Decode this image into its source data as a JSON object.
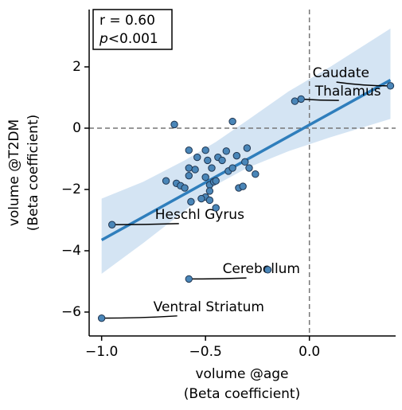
{
  "chart_data": {
    "type": "scatter",
    "x_label": [
      "volume @age",
      "(Beta coefficient)"
    ],
    "y_label": [
      "volume @T2DM",
      "(Beta coefficient)"
    ],
    "stats": {
      "r": "r = 0.60",
      "p_symbol": "p",
      "p_value": "<0.001"
    },
    "xlim": [
      -1.06,
      0.415
    ],
    "ylim": [
      -6.78,
      3.87
    ],
    "xticks": [
      {
        "value": -1.0,
        "label": "−1.0"
      },
      {
        "value": -0.5,
        "label": "−0.5"
      },
      {
        "value": 0,
        "label": "0.0"
      }
    ],
    "yticks": [
      2,
      0,
      {
        "value": -2,
        "label": "−2"
      },
      {
        "value": -4,
        "label": "−4"
      },
      {
        "value": -6,
        "label": "−6"
      }
    ],
    "reference_lines": {
      "x": 0,
      "y": 0
    },
    "color": "#4a86b8",
    "x": [
      -1.0,
      -0.95,
      -0.65,
      -0.58,
      -0.2,
      -0.07,
      -0.04,
      0.39,
      -0.37,
      -0.69,
      -0.64,
      -0.62,
      -0.6,
      -0.58,
      -0.58,
      -0.58,
      -0.55,
      -0.54,
      -0.5,
      -0.49,
      -0.47,
      -0.5,
      -0.48,
      -0.46,
      -0.48,
      -0.5,
      -0.48,
      -0.45,
      -0.44,
      -0.42,
      -0.4,
      -0.39,
      -0.37,
      -0.35,
      -0.34,
      -0.32,
      -0.31,
      -0.3,
      -0.29,
      -0.26,
      -0.57,
      -0.52,
      -0.45
    ],
    "y": [
      -6.2,
      -3.15,
      0.12,
      -4.92,
      -4.62,
      0.88,
      0.95,
      1.38,
      0.22,
      -1.72,
      -1.8,
      -1.88,
      -1.95,
      -0.72,
      -1.3,
      -1.55,
      -1.35,
      -0.95,
      -0.72,
      -1.05,
      -1.3,
      -1.6,
      -1.85,
      -1.75,
      -2.05,
      -2.25,
      -2.35,
      -2.6,
      -0.95,
      -1.05,
      -0.75,
      -1.4,
      -1.3,
      -0.9,
      -1.95,
      -1.9,
      -1.1,
      -0.65,
      -1.3,
      -1.5,
      -2.4,
      -2.3,
      -1.72
    ],
    "fit": {
      "color": "#2f7ebc",
      "x": [
        -1.0,
        0.39
      ],
      "y": [
        -3.65,
        1.57
      ]
    },
    "band": {
      "color": "#c6dbef",
      "x": [
        -1.0,
        -0.8,
        -0.6,
        -0.45,
        -0.3,
        -0.1,
        0.1,
        0.39
      ],
      "upper": [
        -2.3,
        -1.75,
        -1.05,
        -0.45,
        0.25,
        1.2,
        2.0,
        3.25
      ],
      "lower": [
        -4.75,
        -3.75,
        -2.7,
        -1.85,
        -1.3,
        -0.75,
        -0.3,
        0.3
      ]
    },
    "annotations": [
      {
        "text": "Caudate",
        "xy": [
          0.39,
          1.38
        ],
        "xytext": [
          0.015,
          1.79
        ]
      },
      {
        "text": "Thalamus",
        "xy": [
          -0.04,
          0.95
        ],
        "xytext": [
          0.027,
          1.19
        ]
      },
      {
        "text": "Heschl Gyrus",
        "xy": [
          -0.95,
          -3.15
        ],
        "xytext": [
          -0.743,
          -2.83
        ]
      },
      {
        "text": "Cerebellum",
        "xy": [
          -0.58,
          -4.92
        ],
        "xytext": [
          -0.418,
          -4.6
        ]
      },
      {
        "text": "Ventral Striatum",
        "xy": [
          -1.0,
          -6.2
        ],
        "xytext": [
          -0.751,
          -5.84
        ]
      }
    ]
  }
}
